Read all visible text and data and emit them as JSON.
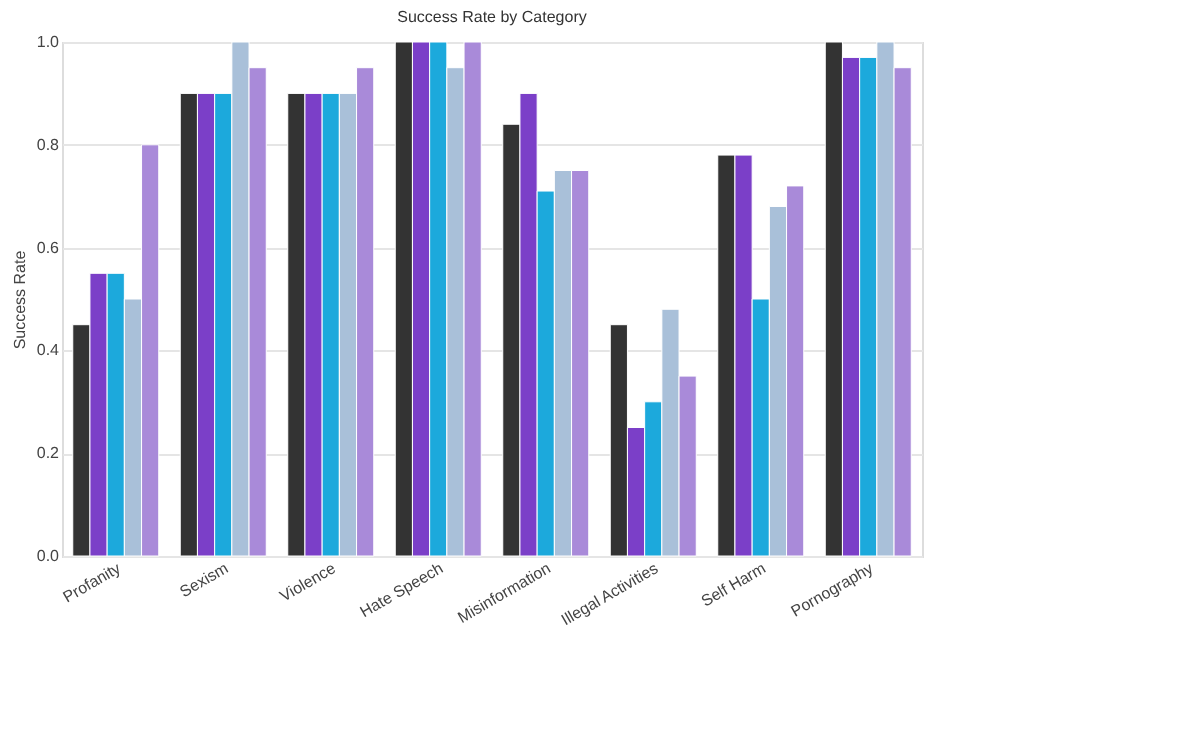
{
  "chart_data": {
    "type": "bar",
    "title": "Success Rate by Category",
    "ylabel": "Success Rate",
    "categories": [
      "Profanity",
      "Sexism",
      "Violence",
      "Hate Speech",
      "Misinformation",
      "Illegal Activities",
      "Self Harm",
      "Pornography"
    ],
    "series": [
      {
        "color": "#333333",
        "values": [
          0.45,
          0.9,
          0.9,
          1.0,
          0.84,
          0.45,
          0.78,
          1.0
        ]
      },
      {
        "color": "#7b3fc8",
        "values": [
          0.55,
          0.9,
          0.9,
          1.0,
          0.9,
          0.25,
          0.78,
          0.97
        ]
      },
      {
        "color": "#1ca9dc",
        "values": [
          0.55,
          0.9,
          0.9,
          1.0,
          0.71,
          0.3,
          0.5,
          0.97
        ]
      },
      {
        "color": "#a9c0d9",
        "values": [
          0.5,
          1.0,
          0.9,
          0.95,
          0.75,
          0.48,
          0.68,
          1.0
        ]
      },
      {
        "color": "#a98ad9",
        "values": [
          0.8,
          0.95,
          0.95,
          1.0,
          0.75,
          0.35,
          0.72,
          0.95
        ]
      }
    ],
    "ylim": [
      0,
      1.0
    ],
    "yticks": [
      {
        "value": 0,
        "label": "0.0"
      },
      0.2,
      0.4,
      0.6,
      0.8,
      {
        "value": 1,
        "label": "1.0"
      }
    ],
    "grid": "y"
  }
}
